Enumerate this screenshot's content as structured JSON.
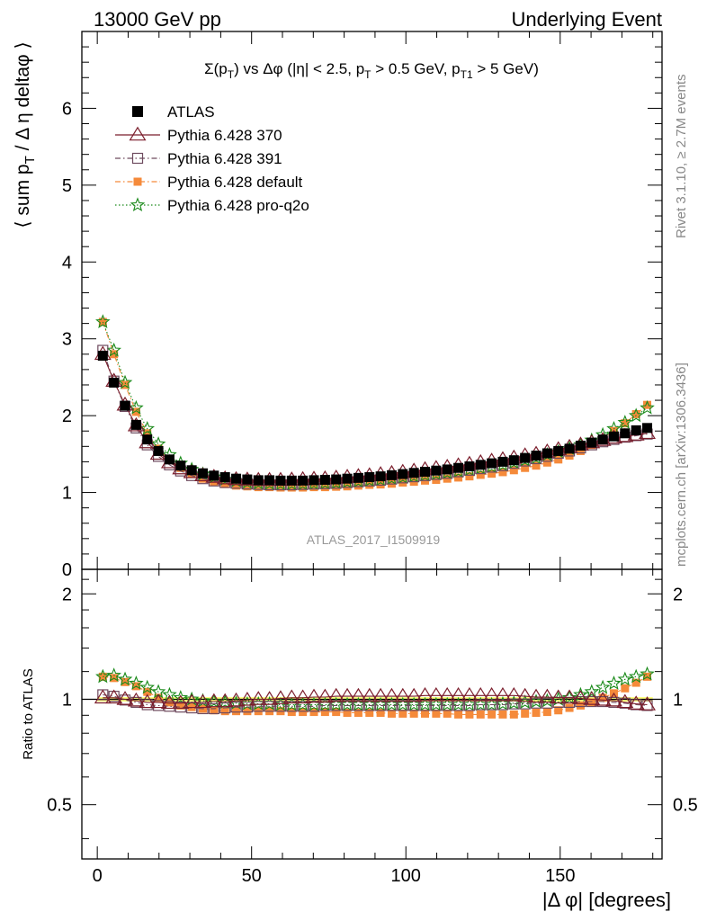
{
  "header": {
    "left": "13000 GeV pp",
    "right": "Underlying Event"
  },
  "side": {
    "rivet": "Rivet 3.1.10, ≥ 2.7M events",
    "mcplots": "mcplots.cern.ch [arXiv:1306.3436]"
  },
  "chart_data": {
    "type": "scatter",
    "title": "Σ(pT) vs Δφ (|η| < 2.5, pT > 0.5 GeV, pT1 > 5 GeV)",
    "title_parts": {
      "a": "Σ(p",
      "a_sub": "T",
      "b": ") vs Δφ (|η| < 2.5, p",
      "b_sub": "T",
      "c": " > 0.5 GeV, p",
      "c_sub": "T1",
      "d": " > 5 GeV)"
    },
    "xlabel": "|Δ φ| [degrees]",
    "ylabel": "⟨ sum pT / Δ η deltaφ ⟩",
    "ylabel_parts": {
      "a": "⟨ sum p",
      "sub": "T",
      "b": " / Δ η deltaφ ⟩"
    },
    "ratio_ylabel": "Ratio to ATLAS",
    "watermark": "ATLAS_2017_I1509919",
    "xlim": [
      -5,
      183
    ],
    "ylim": [
      0,
      7
    ],
    "ratio_ylim": [
      0.35,
      2.35
    ],
    "xticks": [
      0,
      50,
      100,
      150
    ],
    "xtick_labels": [
      "0",
      "50",
      "100",
      "150"
    ],
    "yticks": [
      1,
      2,
      3,
      4,
      5,
      6
    ],
    "ytick_labels": [
      "1",
      "2",
      "3",
      "4",
      "5",
      "6"
    ],
    "ytick_zero_label": "0",
    "ratio_yticks": [
      0.5,
      1,
      2
    ],
    "ratio_ytick_labels": [
      "0.5",
      "1",
      "2"
    ],
    "legend_position": "top-left",
    "x": [
      1.8,
      5.4,
      9,
      12.6,
      16.2,
      19.8,
      23.4,
      27,
      30.6,
      34.2,
      37.8,
      41.4,
      45,
      48.6,
      52.2,
      55.8,
      59.4,
      63,
      66.6,
      70.2,
      73.8,
      77.4,
      81,
      84.6,
      88.2,
      91.8,
      95.4,
      99,
      102.6,
      106.2,
      109.8,
      113.4,
      117,
      120.6,
      124.2,
      127.8,
      131.4,
      135,
      138.6,
      142.2,
      145.8,
      149.4,
      153,
      156.6,
      160.2,
      163.8,
      167.4,
      171,
      174.6,
      178.2
    ],
    "series": [
      {
        "name": "ATLAS",
        "marker": "square-filled",
        "color": "#000000",
        "values": [
          2.78,
          2.43,
          2.13,
          1.88,
          1.69,
          1.54,
          1.43,
          1.35,
          1.29,
          1.25,
          1.22,
          1.2,
          1.18,
          1.17,
          1.16,
          1.16,
          1.155,
          1.155,
          1.155,
          1.16,
          1.165,
          1.17,
          1.18,
          1.19,
          1.2,
          1.21,
          1.225,
          1.24,
          1.255,
          1.27,
          1.285,
          1.3,
          1.32,
          1.34,
          1.36,
          1.38,
          1.4,
          1.42,
          1.45,
          1.48,
          1.51,
          1.54,
          1.57,
          1.61,
          1.65,
          1.69,
          1.73,
          1.77,
          1.81,
          1.84
        ],
        "ratio": [
          1,
          1,
          1,
          1,
          1,
          1,
          1,
          1,
          1,
          1,
          1,
          1,
          1,
          1,
          1,
          1,
          1,
          1,
          1,
          1,
          1,
          1,
          1,
          1,
          1,
          1,
          1,
          1,
          1,
          1,
          1,
          1,
          1,
          1,
          1,
          1,
          1,
          1,
          1,
          1,
          1,
          1,
          1,
          1,
          1,
          1,
          1,
          1,
          1,
          1
        ]
      },
      {
        "name": "Pythia 6.428 370",
        "marker": "triangle-open",
        "color": "#7b1e2c",
        "values": [
          2.8,
          2.45,
          2.14,
          1.87,
          1.65,
          1.5,
          1.39,
          1.31,
          1.26,
          1.22,
          1.2,
          1.18,
          1.17,
          1.165,
          1.16,
          1.16,
          1.16,
          1.165,
          1.17,
          1.175,
          1.18,
          1.19,
          1.2,
          1.21,
          1.22,
          1.235,
          1.25,
          1.265,
          1.28,
          1.3,
          1.315,
          1.33,
          1.35,
          1.37,
          1.39,
          1.41,
          1.43,
          1.45,
          1.48,
          1.5,
          1.53,
          1.56,
          1.59,
          1.62,
          1.65,
          1.68,
          1.71,
          1.73,
          1.75,
          1.77
        ],
        "ratio": [
          1.01,
          1.01,
          1.0,
          0.99,
          0.98,
          0.98,
          0.975,
          0.975,
          0.98,
          0.98,
          0.985,
          0.985,
          0.99,
          0.995,
          1.0,
          1.0,
          1.005,
          1.01,
          1.01,
          1.015,
          1.015,
          1.02,
          1.02,
          1.02,
          1.02,
          1.02,
          1.02,
          1.02,
          1.02,
          1.025,
          1.025,
          1.025,
          1.025,
          1.025,
          1.025,
          1.025,
          1.025,
          1.025,
          1.02,
          1.015,
          1.015,
          1.01,
          1.01,
          1.005,
          1.0,
          0.995,
          0.99,
          0.98,
          0.97,
          0.965
        ]
      },
      {
        "name": "Pythia 6.428 391",
        "marker": "square-open",
        "color": "#6e4a5e",
        "values": [
          2.85,
          2.45,
          2.12,
          1.84,
          1.62,
          1.47,
          1.36,
          1.28,
          1.22,
          1.18,
          1.15,
          1.13,
          1.12,
          1.11,
          1.105,
          1.1,
          1.1,
          1.1,
          1.105,
          1.11,
          1.115,
          1.12,
          1.13,
          1.14,
          1.15,
          1.16,
          1.175,
          1.19,
          1.205,
          1.22,
          1.235,
          1.25,
          1.27,
          1.29,
          1.31,
          1.33,
          1.35,
          1.38,
          1.41,
          1.44,
          1.47,
          1.51,
          1.54,
          1.58,
          1.62,
          1.66,
          1.69,
          1.72,
          1.74,
          1.76
        ],
        "ratio": [
          1.03,
          1.02,
          0.995,
          0.98,
          0.965,
          0.96,
          0.955,
          0.95,
          0.945,
          0.94,
          0.94,
          0.945,
          0.95,
          0.95,
          0.955,
          0.955,
          0.955,
          0.955,
          0.955,
          0.955,
          0.96,
          0.96,
          0.96,
          0.96,
          0.96,
          0.96,
          0.96,
          0.96,
          0.96,
          0.96,
          0.96,
          0.96,
          0.96,
          0.96,
          0.965,
          0.965,
          0.965,
          0.97,
          0.97,
          0.975,
          0.975,
          0.98,
          0.98,
          0.985,
          0.985,
          0.985,
          0.98,
          0.975,
          0.965,
          0.96
        ]
      },
      {
        "name": "Pythia 6.428 default",
        "marker": "square-filled",
        "color": "#f58a3a",
        "values": [
          3.22,
          2.8,
          2.4,
          2.05,
          1.77,
          1.57,
          1.43,
          1.32,
          1.24,
          1.18,
          1.14,
          1.11,
          1.09,
          1.08,
          1.07,
          1.07,
          1.065,
          1.065,
          1.065,
          1.07,
          1.07,
          1.075,
          1.08,
          1.09,
          1.1,
          1.105,
          1.115,
          1.13,
          1.14,
          1.155,
          1.165,
          1.18,
          1.195,
          1.21,
          1.23,
          1.245,
          1.265,
          1.29,
          1.32,
          1.35,
          1.39,
          1.43,
          1.48,
          1.54,
          1.62,
          1.7,
          1.8,
          1.9,
          2.02,
          2.14
        ],
        "ratio": [
          1.16,
          1.15,
          1.12,
          1.09,
          1.05,
          1.01,
          0.98,
          0.96,
          0.95,
          0.94,
          0.93,
          0.925,
          0.925,
          0.925,
          0.925,
          0.925,
          0.925,
          0.92,
          0.92,
          0.92,
          0.92,
          0.92,
          0.915,
          0.915,
          0.915,
          0.915,
          0.91,
          0.91,
          0.91,
          0.91,
          0.91,
          0.91,
          0.905,
          0.905,
          0.905,
          0.905,
          0.905,
          0.905,
          0.91,
          0.915,
          0.92,
          0.93,
          0.945,
          0.96,
          0.98,
          1.01,
          1.04,
          1.075,
          1.115,
          1.16
        ]
      },
      {
        "name": "Pythia 6.428 pro-q2o",
        "marker": "star-open",
        "color": "#1a8a1a",
        "values": [
          3.22,
          2.85,
          2.43,
          2.1,
          1.83,
          1.63,
          1.49,
          1.38,
          1.3,
          1.24,
          1.2,
          1.17,
          1.15,
          1.13,
          1.12,
          1.115,
          1.11,
          1.11,
          1.11,
          1.115,
          1.12,
          1.125,
          1.135,
          1.145,
          1.155,
          1.165,
          1.18,
          1.195,
          1.21,
          1.225,
          1.24,
          1.255,
          1.275,
          1.295,
          1.315,
          1.335,
          1.36,
          1.39,
          1.42,
          1.45,
          1.49,
          1.53,
          1.57,
          1.62,
          1.68,
          1.75,
          1.83,
          1.91,
          2.0,
          2.1
        ],
        "ratio": [
          1.16,
          1.17,
          1.14,
          1.11,
          1.08,
          1.05,
          1.03,
          1.01,
          1.0,
          0.99,
          0.985,
          0.98,
          0.975,
          0.97,
          0.97,
          0.97,
          0.965,
          0.965,
          0.965,
          0.965,
          0.965,
          0.965,
          0.965,
          0.965,
          0.965,
          0.965,
          0.965,
          0.965,
          0.965,
          0.965,
          0.965,
          0.965,
          0.965,
          0.965,
          0.965,
          0.965,
          0.97,
          0.975,
          0.98,
          0.985,
          0.99,
          1.0,
          1.01,
          1.03,
          1.05,
          1.08,
          1.11,
          1.14,
          1.16,
          1.18
        ]
      }
    ],
    "legend": [
      {
        "label": "ATLAS",
        "line": "none"
      },
      {
        "label": "Pythia 6.428 370",
        "line": "solid"
      },
      {
        "label": "Pythia 6.428 391",
        "line": "dashdot"
      },
      {
        "label": "Pythia 6.428 default",
        "line": "dashdot"
      },
      {
        "label": "Pythia 6.428 pro-q2o",
        "line": "dotted"
      }
    ],
    "band_color": "#ffff80"
  }
}
